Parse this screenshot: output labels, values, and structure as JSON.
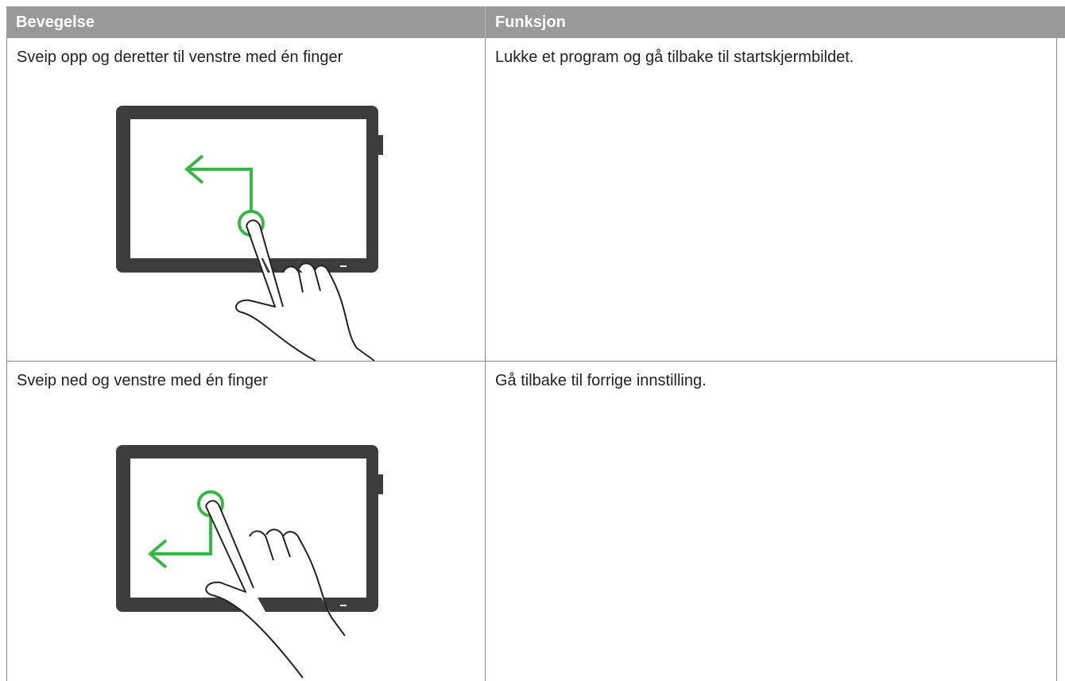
{
  "table": {
    "headers": [
      "Bevegelse",
      "Funksjon"
    ],
    "rows": [
      [
        "Sveip opp og deretter til venstre med én finger",
        "Lukke et program og gå tilbake til startskjermbildet."
      ],
      [
        "Sveip ned og venstre med én finger",
        "Gå tilbake til forrige innstilling."
      ]
    ]
  }
}
